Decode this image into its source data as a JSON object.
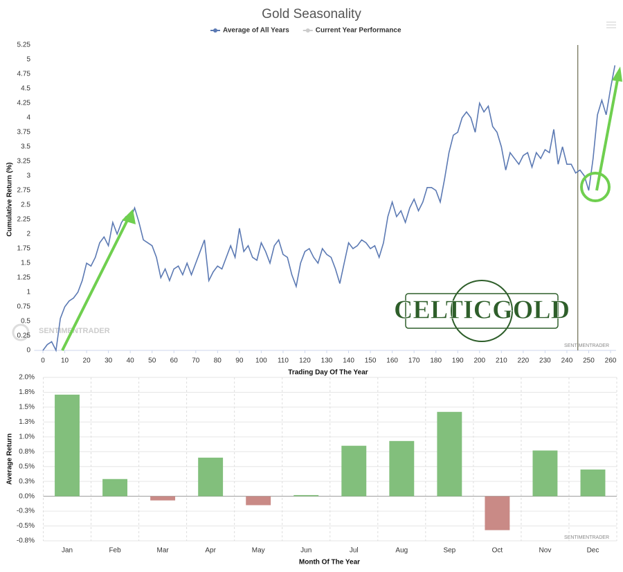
{
  "chart_data": [
    {
      "type": "line",
      "title": "Gold Seasonality",
      "x_label": "Trading Day Of The Year",
      "y_label": "Cumulative Return (%)",
      "x": [
        0,
        2,
        4,
        6,
        8,
        10,
        12,
        14,
        16,
        18,
        20,
        22,
        24,
        26,
        28,
        30,
        32,
        34,
        36,
        38,
        40,
        42,
        44,
        46,
        48,
        50,
        52,
        54,
        56,
        58,
        60,
        62,
        64,
        66,
        68,
        70,
        72,
        74,
        76,
        78,
        80,
        82,
        84,
        86,
        88,
        90,
        92,
        94,
        96,
        98,
        100,
        102,
        104,
        106,
        108,
        110,
        112,
        114,
        116,
        118,
        120,
        122,
        124,
        126,
        128,
        130,
        132,
        134,
        136,
        138,
        140,
        142,
        144,
        146,
        148,
        150,
        152,
        154,
        156,
        158,
        160,
        162,
        164,
        166,
        168,
        170,
        172,
        174,
        176,
        178,
        180,
        182,
        184,
        186,
        188,
        190,
        192,
        194,
        196,
        198,
        200,
        202,
        204,
        206,
        208,
        210,
        212,
        214,
        216,
        218,
        220,
        222,
        224,
        226,
        228,
        230,
        232,
        234,
        236,
        238,
        240,
        242,
        244,
        246,
        248,
        250,
        252,
        254,
        256,
        258,
        260,
        262
      ],
      "series": [
        {
          "name": "Average of All Years",
          "color": "#5b79b3",
          "values": [
            0,
            0.1,
            0.15,
            0,
            0.55,
            0.75,
            0.85,
            0.9,
            1.0,
            1.2,
            1.5,
            1.45,
            1.6,
            1.85,
            1.95,
            1.8,
            2.2,
            2.0,
            2.2,
            2.3,
            2.25,
            2.45,
            2.2,
            1.9,
            1.85,
            1.8,
            1.6,
            1.25,
            1.4,
            1.2,
            1.4,
            1.45,
            1.3,
            1.5,
            1.3,
            1.5,
            1.7,
            1.9,
            1.2,
            1.35,
            1.45,
            1.4,
            1.6,
            1.8,
            1.6,
            2.1,
            1.7,
            1.8,
            1.6,
            1.55,
            1.85,
            1.7,
            1.5,
            1.8,
            1.9,
            1.65,
            1.6,
            1.3,
            1.1,
            1.5,
            1.7,
            1.75,
            1.6,
            1.5,
            1.75,
            1.65,
            1.6,
            1.4,
            1.15,
            1.5,
            1.85,
            1.75,
            1.8,
            1.9,
            1.85,
            1.75,
            1.8,
            1.6,
            1.85,
            2.3,
            2.55,
            2.3,
            2.4,
            2.2,
            2.45,
            2.6,
            2.4,
            2.55,
            2.8,
            2.8,
            2.75,
            2.55,
            2.95,
            3.4,
            3.7,
            3.75,
            4.0,
            4.1,
            4.0,
            3.75,
            4.25,
            4.1,
            4.2,
            3.85,
            3.75,
            3.5,
            3.1,
            3.4,
            3.3,
            3.2,
            3.35,
            3.4,
            3.15,
            3.4,
            3.3,
            3.45,
            3.4,
            3.8,
            3.2,
            3.5,
            3.2,
            3.2,
            3.05,
            3.1,
            3.0,
            2.75,
            3.3,
            4.05,
            4.3,
            4.05,
            4.5,
            4.9
          ]
        },
        {
          "name": "Current Year Performance",
          "color": "#cccccc",
          "visible": false
        }
      ],
      "xlim": [
        -4,
        262.5
      ],
      "xticks": [
        0,
        10,
        20,
        30,
        40,
        50,
        60,
        70,
        80,
        90,
        100,
        110,
        120,
        130,
        140,
        150,
        160,
        170,
        180,
        190,
        200,
        210,
        220,
        230,
        240,
        250,
        260
      ],
      "ylim": [
        0,
        5.25
      ],
      "yticks": [
        0,
        0.25,
        0.5,
        0.75,
        1,
        1.25,
        1.5,
        1.75,
        2,
        2.25,
        2.5,
        2.75,
        3,
        3.25,
        3.5,
        3.75,
        4,
        4.25,
        4.5,
        4.75,
        5,
        5.25
      ],
      "marker_x": 245,
      "logo": "CELTICGOLD",
      "watermark": "SENTIMENTRADER",
      "source": "SENTIMENTRADER"
    },
    {
      "type": "bar",
      "x_label": "Month Of The Year",
      "y_label": "Average Return",
      "categories": [
        "Jan",
        "Feb",
        "Mar",
        "Apr",
        "May",
        "Jun",
        "Jul",
        "Aug",
        "Sep",
        "Oct",
        "Nov",
        "Dec"
      ],
      "values": [
        1.71,
        0.29,
        -0.07,
        0.65,
        -0.15,
        0.02,
        0.85,
        0.93,
        1.42,
        -0.57,
        0.77,
        0.45
      ],
      "colors": [
        "#82bf7c",
        "#82bf7c",
        "#c98a86",
        "#82bf7c",
        "#c98a86",
        "#82bf7c",
        "#82bf7c",
        "#82bf7c",
        "#82bf7c",
        "#c98a86",
        "#82bf7c",
        "#82bf7c"
      ],
      "ylim": [
        -0.75,
        2.0
      ],
      "yticks": [
        {
          "value": 2.0,
          "label": "2.0%"
        },
        {
          "value": 1.75,
          "label": "1.8%"
        },
        {
          "value": 1.5,
          "label": "1.5%"
        },
        {
          "value": 1.25,
          "label": "1.3%"
        },
        {
          "value": 1.0,
          "label": "1.0%"
        },
        {
          "value": 0.75,
          "label": "0.8%"
        },
        {
          "value": 0.5,
          "label": "0.5%"
        },
        {
          "value": 0.25,
          "label": "0.3%"
        },
        {
          "value": 0,
          "label": "0.0%"
        },
        {
          "value": -0.25,
          "label": "-0.3%"
        },
        {
          "value": -0.5,
          "label": "-0.5%"
        },
        {
          "value": -0.75,
          "label": "-0.8%"
        }
      ],
      "source": "SENTIMENTRADER"
    }
  ]
}
